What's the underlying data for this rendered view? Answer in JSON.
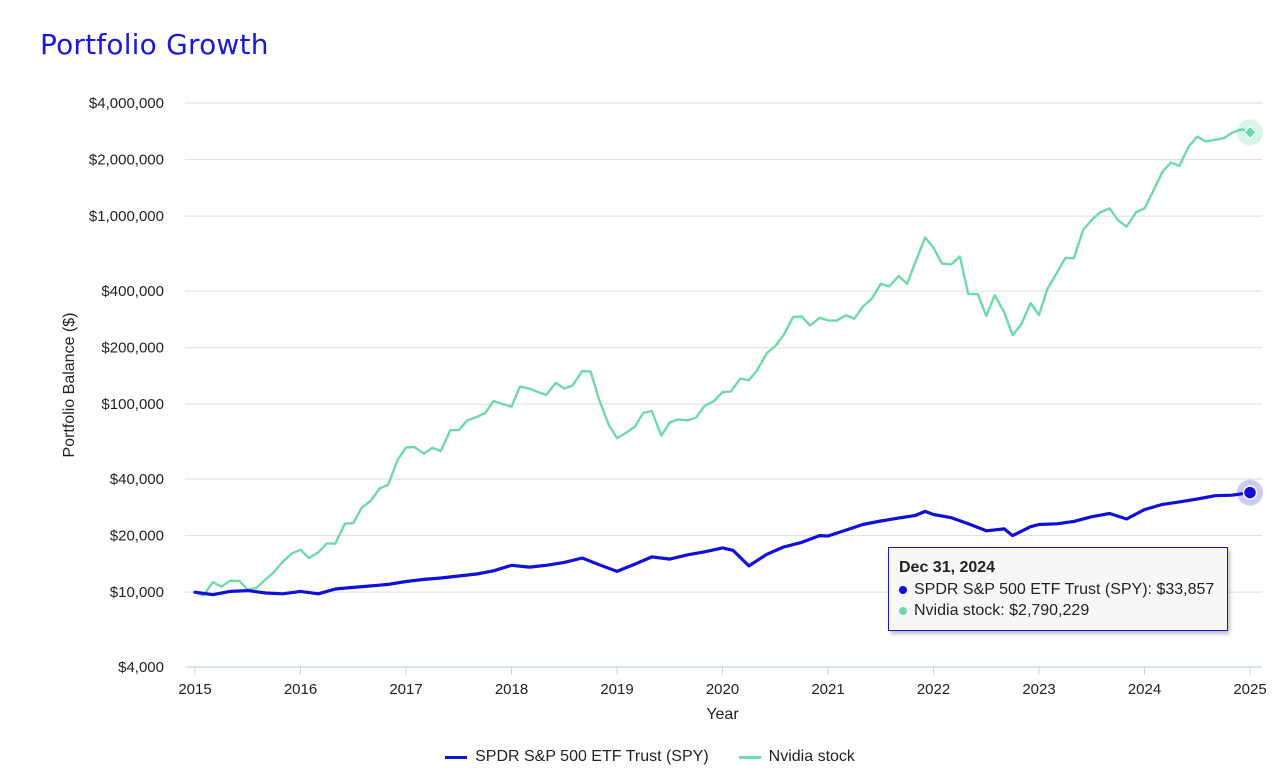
{
  "page": {
    "title": "Portfolio Growth"
  },
  "chart_data": {
    "type": "line",
    "xlabel": "Year",
    "ylabel": "Portfolio Balance ($)",
    "yscale": "log",
    "xlim": [
      2015,
      2025
    ],
    "ylim": [
      4000,
      4000000
    ],
    "x_ticks": [
      "2015",
      "2016",
      "2017",
      "2018",
      "2019",
      "2020",
      "2021",
      "2022",
      "2023",
      "2024",
      "2025"
    ],
    "y_ticks": [
      {
        "value": 4000,
        "label": "$4,000"
      },
      {
        "value": 10000,
        "label": "$10,000"
      },
      {
        "value": 20000,
        "label": "$20,000"
      },
      {
        "value": 40000,
        "label": "$40,000"
      },
      {
        "value": 100000,
        "label": "$100,000"
      },
      {
        "value": 200000,
        "label": "$200,000"
      },
      {
        "value": 400000,
        "label": "$400,000"
      },
      {
        "value": 1000000,
        "label": "$1,000,000"
      },
      {
        "value": 2000000,
        "label": "$2,000,000"
      },
      {
        "value": 4000000,
        "label": "$4,000,000"
      }
    ],
    "grid": true,
    "legend_position": "bottom",
    "series": [
      {
        "name": "SPDR S&P 500 ETF Trust (SPY)",
        "color": "#1010d8",
        "points": [
          [
            2015.0,
            10000
          ],
          [
            2015.17,
            9700
          ],
          [
            2015.33,
            10100
          ],
          [
            2015.5,
            10200
          ],
          [
            2015.67,
            9900
          ],
          [
            2015.83,
            9800
          ],
          [
            2016.0,
            10100
          ],
          [
            2016.17,
            9800
          ],
          [
            2016.33,
            10400
          ],
          [
            2016.5,
            10600
          ],
          [
            2016.67,
            10800
          ],
          [
            2016.83,
            11000
          ],
          [
            2017.0,
            11400
          ],
          [
            2017.17,
            11700
          ],
          [
            2017.33,
            11900
          ],
          [
            2017.5,
            12200
          ],
          [
            2017.67,
            12500
          ],
          [
            2017.83,
            13000
          ],
          [
            2018.0,
            13900
          ],
          [
            2018.17,
            13600
          ],
          [
            2018.33,
            13900
          ],
          [
            2018.5,
            14400
          ],
          [
            2018.67,
            15200
          ],
          [
            2018.83,
            14000
          ],
          [
            2019.0,
            12900
          ],
          [
            2019.17,
            14100
          ],
          [
            2019.33,
            15400
          ],
          [
            2019.5,
            15000
          ],
          [
            2019.67,
            15800
          ],
          [
            2019.83,
            16400
          ],
          [
            2020.0,
            17200
          ],
          [
            2020.1,
            16700
          ],
          [
            2020.25,
            13800
          ],
          [
            2020.42,
            15900
          ],
          [
            2020.58,
            17400
          ],
          [
            2020.75,
            18400
          ],
          [
            2020.92,
            20000
          ],
          [
            2021.0,
            19900
          ],
          [
            2021.17,
            21400
          ],
          [
            2021.33,
            22900
          ],
          [
            2021.5,
            23900
          ],
          [
            2021.67,
            24800
          ],
          [
            2021.83,
            25600
          ],
          [
            2021.92,
            26900
          ],
          [
            2022.0,
            25900
          ],
          [
            2022.17,
            24900
          ],
          [
            2022.33,
            23100
          ],
          [
            2022.5,
            21200
          ],
          [
            2022.67,
            21700
          ],
          [
            2022.75,
            20000
          ],
          [
            2022.92,
            22300
          ],
          [
            2023.0,
            22900
          ],
          [
            2023.17,
            23100
          ],
          [
            2023.33,
            23800
          ],
          [
            2023.5,
            25200
          ],
          [
            2023.67,
            26200
          ],
          [
            2023.83,
            24500
          ],
          [
            2024.0,
            27500
          ],
          [
            2024.17,
            29300
          ],
          [
            2024.33,
            30200
          ],
          [
            2024.5,
            31300
          ],
          [
            2024.67,
            32600
          ],
          [
            2024.83,
            32800
          ],
          [
            2025.0,
            33857
          ]
        ]
      },
      {
        "name": "Nvidia stock",
        "color": "#6fdaa8",
        "points": [
          [
            2015.0,
            10000
          ],
          [
            2015.08,
            9600
          ],
          [
            2015.17,
            11300
          ],
          [
            2015.25,
            10700
          ],
          [
            2015.33,
            11500
          ],
          [
            2015.42,
            11500
          ],
          [
            2015.5,
            10300
          ],
          [
            2015.58,
            10500
          ],
          [
            2015.67,
            11700
          ],
          [
            2015.75,
            12800
          ],
          [
            2015.83,
            14500
          ],
          [
            2015.92,
            16100
          ],
          [
            2016.0,
            16800
          ],
          [
            2016.08,
            15200
          ],
          [
            2016.17,
            16300
          ],
          [
            2016.25,
            18200
          ],
          [
            2016.33,
            18100
          ],
          [
            2016.42,
            23100
          ],
          [
            2016.5,
            23300
          ],
          [
            2016.58,
            28100
          ],
          [
            2016.67,
            30800
          ],
          [
            2016.75,
            35600
          ],
          [
            2016.83,
            37200
          ],
          [
            2016.92,
            50500
          ],
          [
            2017.0,
            58800
          ],
          [
            2017.08,
            59200
          ],
          [
            2017.17,
            54600
          ],
          [
            2017.25,
            58600
          ],
          [
            2017.33,
            56300
          ],
          [
            2017.42,
            72700
          ],
          [
            2017.5,
            72800
          ],
          [
            2017.58,
            81900
          ],
          [
            2017.67,
            85500
          ],
          [
            2017.75,
            89700
          ],
          [
            2017.83,
            104000
          ],
          [
            2017.92,
            100000
          ],
          [
            2018.0,
            97000
          ],
          [
            2018.08,
            124000
          ],
          [
            2018.17,
            121000
          ],
          [
            2018.25,
            116000
          ],
          [
            2018.33,
            112000
          ],
          [
            2018.42,
            130000
          ],
          [
            2018.5,
            121000
          ],
          [
            2018.58,
            126000
          ],
          [
            2018.67,
            150000
          ],
          [
            2018.75,
            149000
          ],
          [
            2018.83,
            106000
          ],
          [
            2018.92,
            78000
          ],
          [
            2019.0,
            66000
          ],
          [
            2019.08,
            70000
          ],
          [
            2019.17,
            76000
          ],
          [
            2019.25,
            90000
          ],
          [
            2019.33,
            92000
          ],
          [
            2019.42,
            68000
          ],
          [
            2019.5,
            80000
          ],
          [
            2019.58,
            83000
          ],
          [
            2019.67,
            82000
          ],
          [
            2019.75,
            85000
          ],
          [
            2019.83,
            98000
          ],
          [
            2019.92,
            104000
          ],
          [
            2020.0,
            116000
          ],
          [
            2020.08,
            117000
          ],
          [
            2020.17,
            137000
          ],
          [
            2020.25,
            134000
          ],
          [
            2020.33,
            152000
          ],
          [
            2020.42,
            187000
          ],
          [
            2020.5,
            204000
          ],
          [
            2020.58,
            234000
          ],
          [
            2020.67,
            291000
          ],
          [
            2020.75,
            293000
          ],
          [
            2020.83,
            262000
          ],
          [
            2020.92,
            288000
          ],
          [
            2021.0,
            279000
          ],
          [
            2021.08,
            278000
          ],
          [
            2021.17,
            297000
          ],
          [
            2021.25,
            285000
          ],
          [
            2021.33,
            330000
          ],
          [
            2021.42,
            367000
          ],
          [
            2021.5,
            437000
          ],
          [
            2021.58,
            423000
          ],
          [
            2021.67,
            480000
          ],
          [
            2021.75,
            437000
          ],
          [
            2021.83,
            573000
          ],
          [
            2021.92,
            770000
          ],
          [
            2022.0,
            680000
          ],
          [
            2022.08,
            560000
          ],
          [
            2022.17,
            555000
          ],
          [
            2022.25,
            610000
          ],
          [
            2022.33,
            385000
          ],
          [
            2022.42,
            385000
          ],
          [
            2022.5,
            295000
          ],
          [
            2022.58,
            380000
          ],
          [
            2022.67,
            308000
          ],
          [
            2022.75,
            233000
          ],
          [
            2022.83,
            265000
          ],
          [
            2022.92,
            345000
          ],
          [
            2023.0,
            298000
          ],
          [
            2023.08,
            410000
          ],
          [
            2023.17,
            500000
          ],
          [
            2023.25,
            600000
          ],
          [
            2023.33,
            598000
          ],
          [
            2023.42,
            850000
          ],
          [
            2023.5,
            955000
          ],
          [
            2023.58,
            1050000
          ],
          [
            2023.67,
            1100000
          ],
          [
            2023.75,
            950000
          ],
          [
            2023.83,
            880000
          ],
          [
            2023.92,
            1050000
          ],
          [
            2024.0,
            1100000
          ],
          [
            2024.08,
            1350000
          ],
          [
            2024.17,
            1720000
          ],
          [
            2024.25,
            1930000
          ],
          [
            2024.33,
            1850000
          ],
          [
            2024.42,
            2350000
          ],
          [
            2024.5,
            2650000
          ],
          [
            2024.58,
            2500000
          ],
          [
            2024.67,
            2550000
          ],
          [
            2024.75,
            2600000
          ],
          [
            2024.83,
            2780000
          ],
          [
            2024.92,
            2900000
          ],
          [
            2025.0,
            2790229
          ]
        ]
      }
    ]
  },
  "tooltip": {
    "date": "Dec 31, 2024",
    "rows": [
      {
        "text": "SPDR S&P 500 ETF Trust (SPY): $33,857",
        "color": "#1010d8"
      },
      {
        "text": "Nvidia stock: $2,790,229",
        "color": "#6fdaa8"
      }
    ]
  },
  "legend": {
    "items": [
      {
        "label": "SPDR S&P 500 ETF Trust (SPY)",
        "color": "#1010d8"
      },
      {
        "label": "Nvidia stock",
        "color": "#6fdaa8"
      }
    ]
  }
}
